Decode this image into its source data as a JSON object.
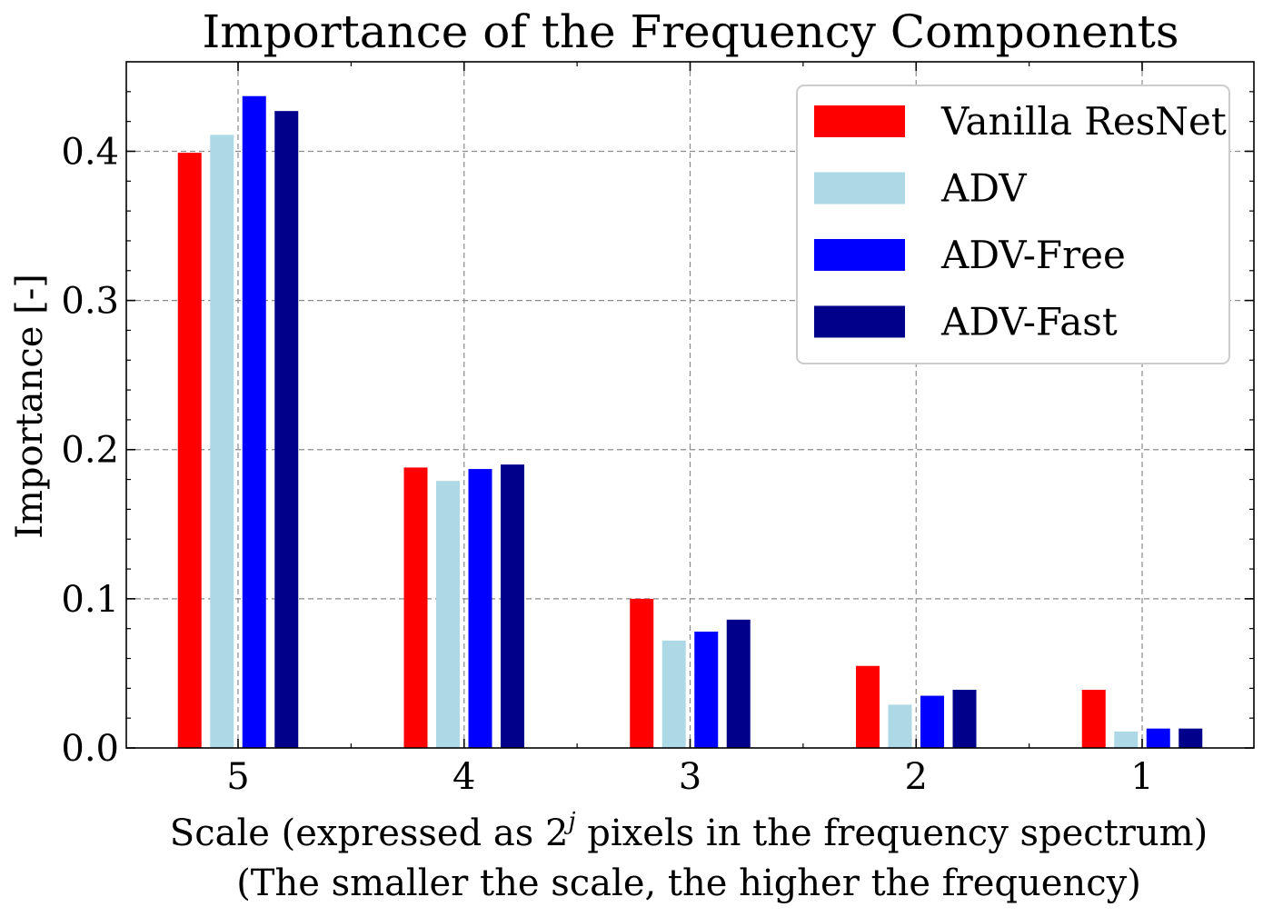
{
  "chart_data": {
    "type": "bar",
    "title": "Importance of the Frequency Components",
    "xlabel": "Scale (expressed as 2",
    "xlabel_sup": "j",
    "xlabel_rest": " pixels in the frequency spectrum)",
    "xlabel_line2": "(The smaller the scale, the higher the frequency)",
    "ylabel": "Importance [-]",
    "categories": [
      "5",
      "4",
      "3",
      "2",
      "1"
    ],
    "ylim": [
      0,
      0.46
    ],
    "yticks": [
      "0.0",
      "0.1",
      "0.2",
      "0.3",
      "0.4"
    ],
    "yticks_values": [
      0.0,
      0.1,
      0.2,
      0.3,
      0.4
    ],
    "grid": true,
    "legend_position": "top-right",
    "series": [
      {
        "name": "Vanilla ResNet",
        "color": "#ff0000",
        "values": [
          0.399,
          0.188,
          0.1,
          0.055,
          0.039
        ]
      },
      {
        "name": "ADV",
        "color": "#add8e6",
        "values": [
          0.411,
          0.179,
          0.072,
          0.029,
          0.011
        ]
      },
      {
        "name": "ADV-Free",
        "color": "#0000ff",
        "values": [
          0.437,
          0.187,
          0.078,
          0.035,
          0.013
        ]
      },
      {
        "name": "ADV-Fast",
        "color": "#00008b",
        "values": [
          0.427,
          0.19,
          0.086,
          0.039,
          0.013
        ]
      }
    ]
  }
}
